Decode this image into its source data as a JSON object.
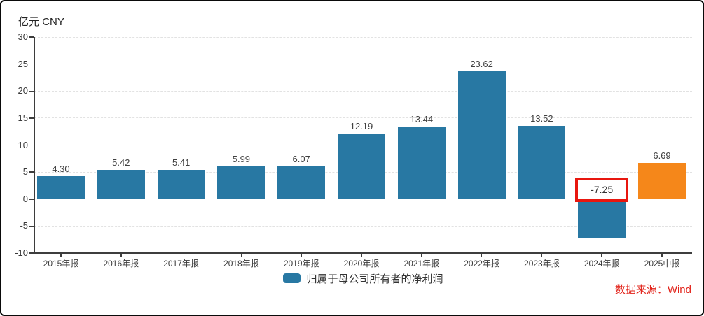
{
  "header": {
    "unit_label": "亿元 CNY"
  },
  "legend": {
    "label": "归属于母公司所有者的净利润"
  },
  "footer": {
    "source_label": "数据来源：Wind"
  },
  "colors": {
    "bar": "#2878a3",
    "highlight_bar": "#f5871a",
    "annotation_border": "#e8170f",
    "source_text": "#e2231a",
    "grid": "#e2e2e2",
    "axis": "#3d3d3d",
    "text": "#3a3a3a"
  },
  "chart_data": {
    "type": "bar",
    "title": "归属于母公司所有者的净利润",
    "unit": "亿元 CNY",
    "categories": [
      "2015年报",
      "2016年报",
      "2017年报",
      "2018年报",
      "2019年报",
      "2020年报",
      "2021年报",
      "2022年报",
      "2023年报",
      "2024年报",
      "2025中报"
    ],
    "values": [
      4.3,
      5.42,
      5.41,
      5.99,
      6.07,
      12.19,
      13.44,
      23.62,
      13.52,
      -7.25,
      6.69
    ],
    "value_labels": [
      "4.30",
      "5.42",
      "5.41",
      "5.99",
      "6.07",
      "12.19",
      "13.44",
      "23.62",
      "13.52",
      "-7.25",
      "6.69"
    ],
    "ylabel": "亿元 CNY",
    "xlabel": "",
    "ylim": [
      -10,
      30
    ],
    "yticks": [
      30,
      25,
      20,
      15,
      10,
      5,
      0,
      -5,
      -10
    ],
    "grid": "horizontal-dashed",
    "legend_entries": [
      "归属于母公司所有者的净利润"
    ],
    "legend_position": "bottom",
    "highlight": {
      "index": 10,
      "color": "#f5871a",
      "note": "2025中报 bar shown in orange"
    },
    "annotation": {
      "index": 9,
      "text": "-7.25",
      "style": "red-box",
      "note": "2024年报 value outlined in red box"
    },
    "source": "数据来源：Wind"
  }
}
